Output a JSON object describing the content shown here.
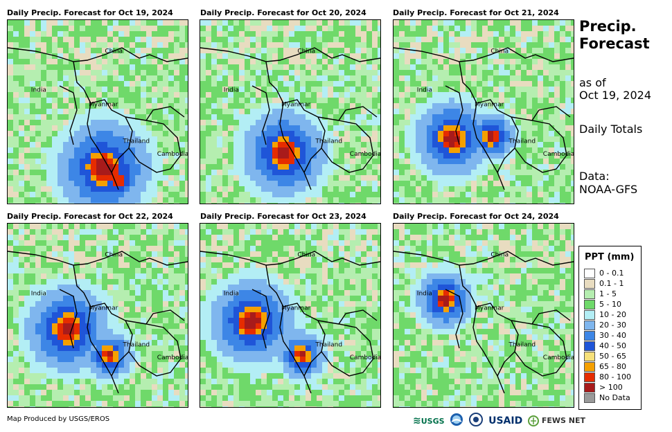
{
  "panels": [
    {
      "title": "Daily Precip. Forecast for Oct 19, 2024"
    },
    {
      "title": "Daily Precip. Forecast for Oct 20, 2024"
    },
    {
      "title": "Daily Precip. Forecast for Oct 21, 2024"
    },
    {
      "title": "Daily Precip. Forecast for Oct 22, 2024"
    },
    {
      "title": "Daily Precip. Forecast for Oct 23, 2024"
    },
    {
      "title": "Daily Precip. Forecast for Oct 24, 2024"
    }
  ],
  "map_labels": {
    "china": "China",
    "india": "India",
    "myanmar": "Myanmar",
    "thailand": "Thailand",
    "cambodia": "Cambodia"
  },
  "side": {
    "title_line1": "Precip.",
    "title_line2": "Forecast",
    "as_of_line1": "as of",
    "as_of_line2": "Oct 19, 2024",
    "daily_totals": "Daily Totals",
    "data_line1": "Data:",
    "data_line2": "NOAA-GFS"
  },
  "legend": {
    "title": "PPT (mm)",
    "items": [
      {
        "label": "0 - 0.1",
        "color": "#ffffff"
      },
      {
        "label": "0.1 - 1",
        "color": "#e8dcc0"
      },
      {
        "label": "1 - 5",
        "color": "#b5eeb0"
      },
      {
        "label": "5 - 10",
        "color": "#6fd96a"
      },
      {
        "label": "10 - 20",
        "color": "#b3eef5"
      },
      {
        "label": "20 - 30",
        "color": "#7fb6ee"
      },
      {
        "label": "30 - 40",
        "color": "#3d86e6"
      },
      {
        "label": "40 - 50",
        "color": "#1f55d8"
      },
      {
        "label": "50 - 65",
        "color": "#f6e07a"
      },
      {
        "label": "65 - 80",
        "color": "#f5a000"
      },
      {
        "label": "80 - 100",
        "color": "#e62c00"
      },
      {
        "label": "> 100",
        "color": "#a81b1b"
      },
      {
        "label": "No Data",
        "color": "#9a9a9a"
      }
    ]
  },
  "footer": {
    "credit": "Map Produced by USGS/EROS"
  },
  "logos": {
    "usgs": "USGS",
    "usaid": "USAID",
    "fewsnet": "FEWS NET"
  }
}
